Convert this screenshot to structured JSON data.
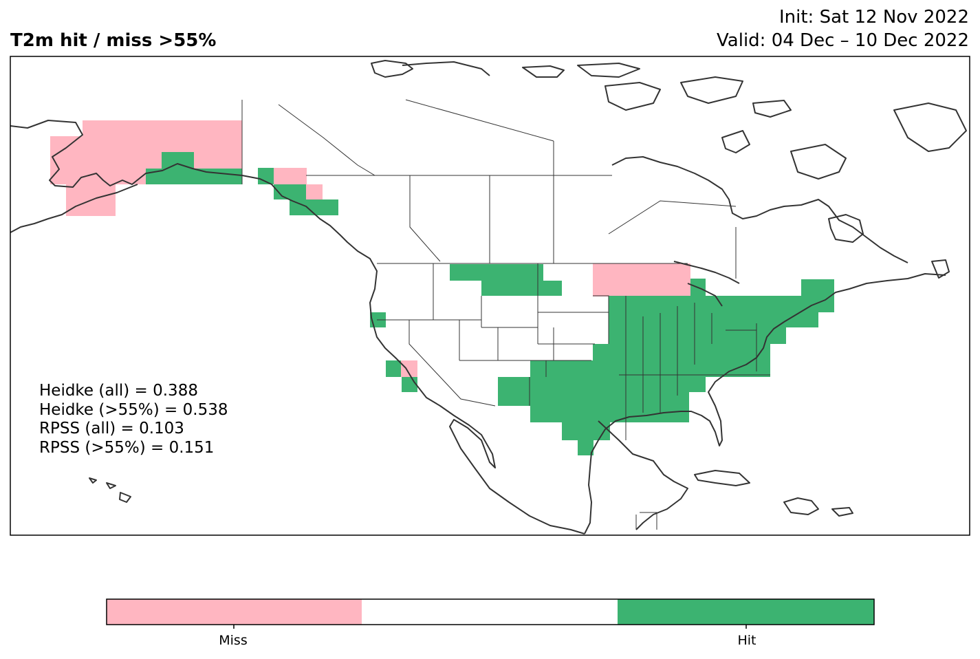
{
  "title": "T2m hit / miss  >55%",
  "init": "Init: Sat 12 Nov 2022",
  "valid": "Valid: 04 Dec – 10 Dec 2022",
  "stats": [
    "Heidke (all) = 0.388",
    "Heidke (>55%) = 0.538",
    "RPSS (all) = 0.103",
    "RPSS (>55%) = 0.151"
  ],
  "colors": {
    "miss": "#ffb6c1",
    "hit": "#3cb371",
    "neutral": "#ffffff",
    "land_outline": "#333333"
  },
  "legend": {
    "miss_label": "Miss",
    "hit_label": "Hit"
  }
}
